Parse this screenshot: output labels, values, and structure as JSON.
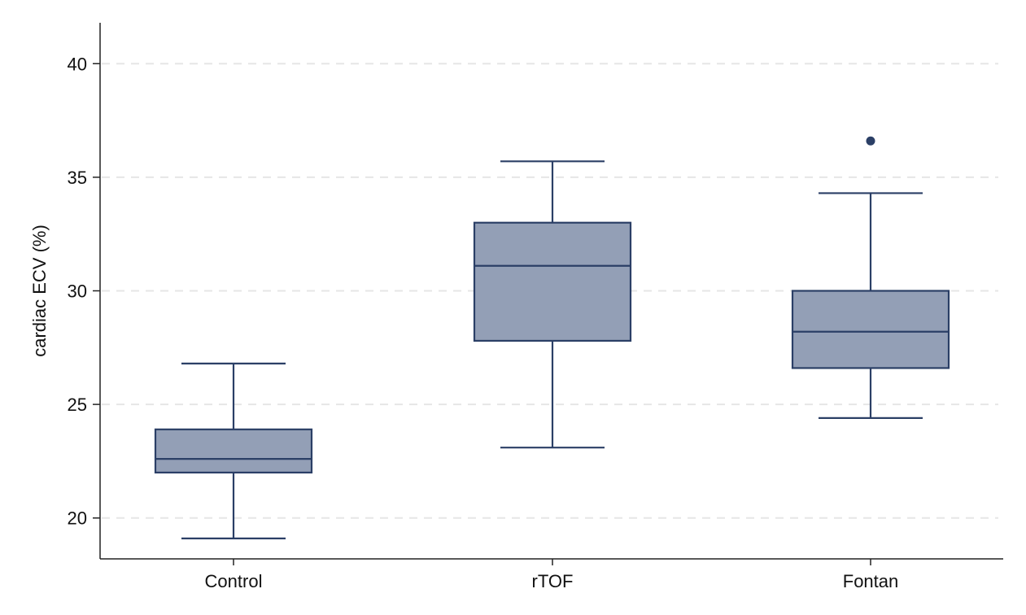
{
  "chart_data": {
    "type": "box",
    "title": "",
    "xlabel": "",
    "ylabel": "cardiac ECV (%)",
    "ylim": [
      18.2,
      41.8
    ],
    "yticks": [
      20,
      25,
      30,
      35,
      40
    ],
    "grid": true,
    "categories": [
      "Control",
      "rTOF",
      "Fontan"
    ],
    "boxes": [
      {
        "category": "Control",
        "whisker_low": 19.1,
        "q1": 22.0,
        "median": 22.6,
        "q3": 23.9,
        "whisker_high": 26.8,
        "outliers": []
      },
      {
        "category": "rTOF",
        "whisker_low": 23.1,
        "q1": 27.8,
        "median": 31.1,
        "q3": 33.0,
        "whisker_high": 35.7,
        "outliers": []
      },
      {
        "category": "Fontan",
        "whisker_low": 24.4,
        "q1": 26.6,
        "median": 28.2,
        "q3": 30.0,
        "whisker_high": 34.3,
        "outliers": [
          36.6
        ]
      }
    ],
    "colors": {
      "box_fill": "#939fb6",
      "box_stroke": "#2b3f66",
      "grid": "#e6e6e6",
      "axis": "#222222"
    }
  }
}
